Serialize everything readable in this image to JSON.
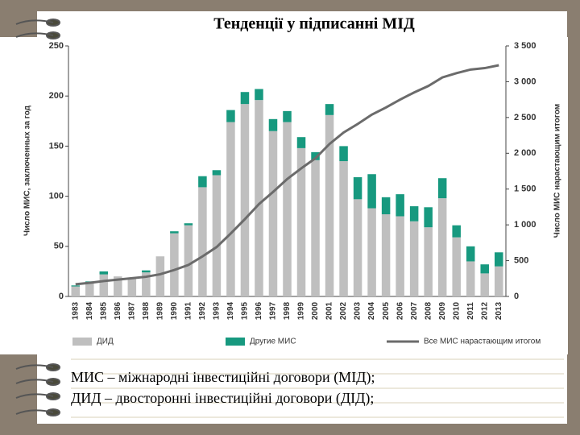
{
  "chart_data": {
    "type": "bar",
    "stacked": true,
    "title": "Тенденції у підписанні МІД",
    "y_label": "Число МИС, заключенных за год",
    "y2_label": "Число МИС нарастающим итогом",
    "categories": [
      "1983",
      "1984",
      "1985",
      "1986",
      "1987",
      "1988",
      "1989",
      "1990",
      "1991",
      "1992",
      "1993",
      "1994",
      "1995",
      "1996",
      "1997",
      "1998",
      "1999",
      "2000",
      "2001",
      "2002",
      "2003",
      "2004",
      "2005",
      "2006",
      "2007",
      "2008",
      "2009",
      "2010",
      "2011",
      "2012",
      "2013"
    ],
    "series": [
      {
        "name": "ДИД",
        "color": "#bfbfbf",
        "values": [
          10,
          14,
          22,
          20,
          18,
          24,
          40,
          63,
          71,
          109,
          121,
          174,
          192,
          196,
          165,
          174,
          148,
          136,
          181,
          135,
          97,
          88,
          82,
          80,
          75,
          69,
          98,
          59,
          35,
          23,
          30
        ]
      },
      {
        "name": "Другие МИС",
        "color": "#17997f",
        "values": [
          1,
          1,
          3,
          0,
          0,
          2,
          0,
          2,
          2,
          11,
          5,
          12,
          12,
          11,
          12,
          11,
          11,
          8,
          11,
          15,
          22,
          34,
          17,
          22,
          15,
          20,
          20,
          12,
          15,
          9,
          14
        ]
      },
      {
        "name": "Все МИС нарастающим итогом",
        "color": "#6b6b6b",
        "axis": "y2",
        "values": [
          170,
          190,
          215,
          235,
          255,
          275,
          310,
          370,
          440,
          560,
          690,
          880,
          1080,
          1290,
          1460,
          1640,
          1790,
          1930,
          2130,
          2290,
          2410,
          2540,
          2640,
          2750,
          2850,
          2940,
          3060,
          3120,
          3170,
          3190,
          3230
        ]
      }
    ],
    "ylim": [
      0,
      250
    ],
    "yticks": [
      0,
      50,
      100,
      150,
      200,
      250
    ],
    "y2lim": [
      0,
      3500
    ],
    "y2ticks": [
      0,
      500,
      {
        "value": 1000,
        "label": "1 000"
      },
      {
        "value": 1500,
        "label": "1 500"
      },
      {
        "value": 2000,
        "label": "2 000"
      },
      {
        "value": 2500,
        "label": "2 500"
      },
      {
        "value": 3000,
        "label": "3 000"
      },
      {
        "value": 3500,
        "label": "3 500"
      }
    ],
    "grid": false
  },
  "notes": [
    "МИС – міжнародні інвестиційні договори (МІД);",
    "ДИД – двосторонні інвестиційні договори (ДІД);"
  ]
}
